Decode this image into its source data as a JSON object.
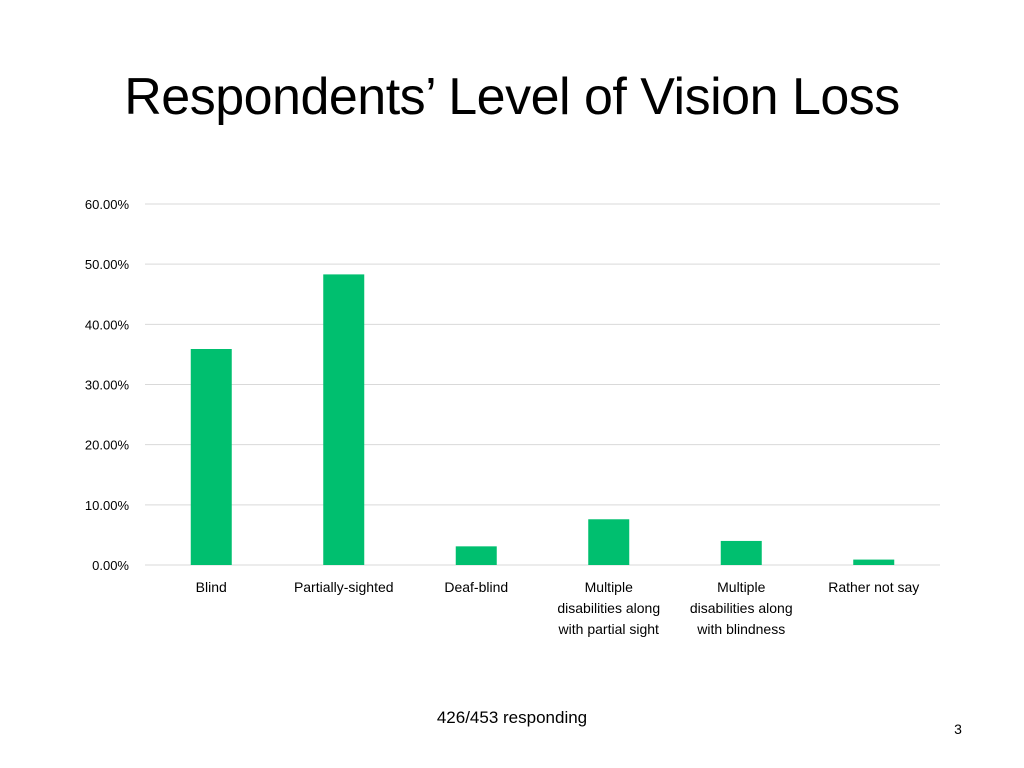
{
  "slide": {
    "title": "Respondents’ Level of Vision Loss",
    "footer": "426/453 responding",
    "page_number": "3"
  },
  "colors": {
    "bar": "#00BF6F",
    "grid": "#D9D9D9",
    "text": "#000000"
  },
  "chart_data": {
    "type": "bar",
    "categories": [
      [
        "Blind"
      ],
      [
        "Partially-sighted"
      ],
      [
        "Deaf-blind"
      ],
      [
        "Multiple",
        "disabilities along",
        "with partial sight"
      ],
      [
        "Multiple",
        "disabilities along",
        "with blindness"
      ],
      [
        "Rather not say"
      ]
    ],
    "values": [
      35.9,
      48.3,
      3.1,
      7.6,
      4.0,
      0.9
    ],
    "ylim": [
      0,
      60
    ],
    "yticks": [
      0,
      10,
      20,
      30,
      40,
      50,
      60
    ],
    "ytick_labels": [
      "0.00%",
      "10.00%",
      "20.00%",
      "30.00%",
      "40.00%",
      "50.00%",
      "60.00%"
    ],
    "grid": true,
    "legend": "none"
  }
}
